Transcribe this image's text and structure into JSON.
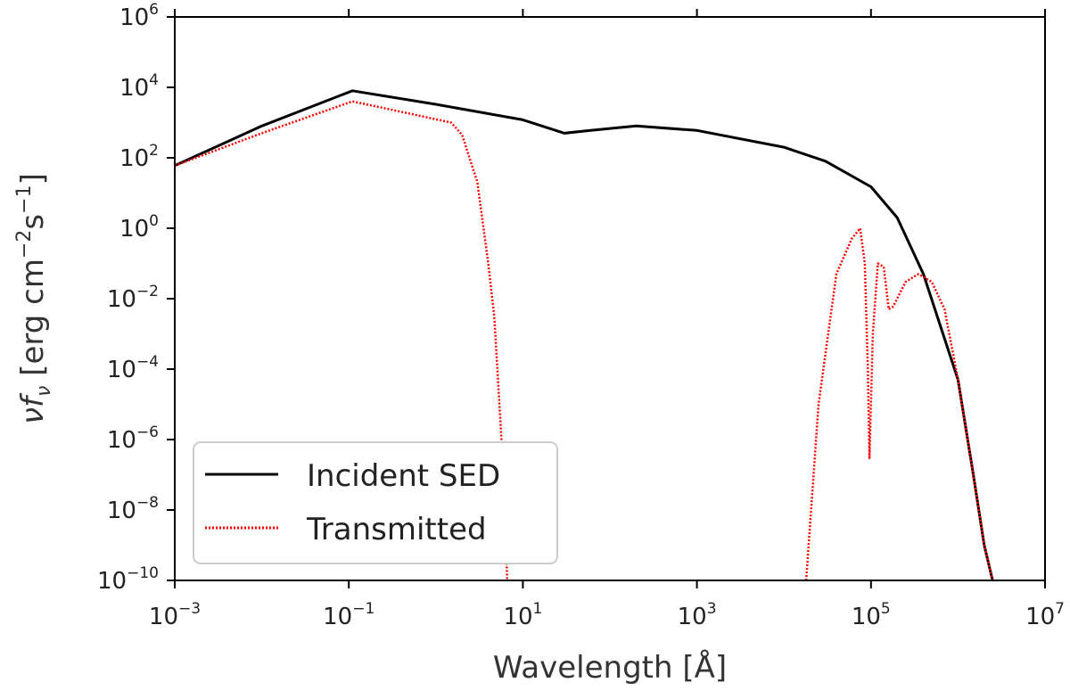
{
  "chart_data": {
    "type": "line",
    "xscale": "log",
    "yscale": "log",
    "xlabel": "Wavelength [Å]",
    "ylabel": "νfν [erg cm⁻²s⁻¹]",
    "ylabel_parts": {
      "nu": "ν",
      "f": "f",
      "sub": "ν",
      "rest": " [erg cm",
      "exp1": "−2",
      "s": "s",
      "exp2": "−1",
      "close": "]"
    },
    "xlim": [
      0.001,
      10000000
    ],
    "ylim": [
      1e-10,
      1000000
    ],
    "xticks": [
      {
        "base": "10",
        "exp": "−3",
        "value": 0.001
      },
      {
        "base": "10",
        "exp": "−1",
        "value": 0.1
      },
      {
        "base": "10",
        "exp": "1",
        "value": 10
      },
      {
        "base": "10",
        "exp": "3",
        "value": 1000
      },
      {
        "base": "10",
        "exp": "5",
        "value": 100000
      },
      {
        "base": "10",
        "exp": "7",
        "value": 10000000
      }
    ],
    "yticks": [
      {
        "base": "10",
        "exp": "−10",
        "value": 1e-10
      },
      {
        "base": "10",
        "exp": "−8",
        "value": 1e-08
      },
      {
        "base": "10",
        "exp": "−6",
        "value": 1e-06
      },
      {
        "base": "10",
        "exp": "−4",
        "value": 0.0001
      },
      {
        "base": "10",
        "exp": "−2",
        "value": 0.01
      },
      {
        "base": "10",
        "exp": "0",
        "value": 1
      },
      {
        "base": "10",
        "exp": "2",
        "value": 100
      },
      {
        "base": "10",
        "exp": "4",
        "value": 10000
      },
      {
        "base": "10",
        "exp": "6",
        "value": 1000000
      }
    ],
    "legend_position": "lower-left",
    "series": [
      {
        "name": "Incident SED",
        "color": "#000000",
        "style": "solid",
        "points": [
          [
            0.001,
            60
          ],
          [
            0.01,
            800
          ],
          [
            0.11,
            8000
          ],
          [
            1,
            3300
          ],
          [
            10,
            1200
          ],
          [
            30,
            500
          ],
          [
            60,
            600
          ],
          [
            200,
            800
          ],
          [
            1000,
            600
          ],
          [
            10000,
            200
          ],
          [
            30000,
            80
          ],
          [
            100000,
            15
          ],
          [
            200000,
            2
          ],
          [
            400000,
            0.05
          ],
          [
            1000000,
            5e-05
          ],
          [
            1500000,
            1e-07
          ],
          [
            2000000,
            1e-09
          ],
          [
            2500000,
            1e-10
          ]
        ]
      },
      {
        "name": "Transmitted",
        "color": "#ff0000",
        "style": "dotted",
        "points": [
          [
            0.001,
            60
          ],
          [
            0.01,
            500
          ],
          [
            0.11,
            4000
          ],
          [
            0.5,
            1800
          ],
          [
            1.5,
            1000
          ],
          [
            2,
            450
          ],
          [
            3,
            20
          ],
          [
            4,
            0.1
          ],
          [
            4.7,
            0.003
          ],
          [
            5.2,
            4e-05
          ],
          [
            6,
            1e-07
          ],
          [
            6.6,
            1e-10
          ],
          null,
          [
            18000,
            1e-10
          ],
          [
            25000,
            1e-05
          ],
          [
            40000,
            0.05
          ],
          [
            60000,
            0.5
          ],
          [
            75000,
            1
          ],
          [
            85000,
            0.1
          ],
          [
            92000,
            0.0001
          ],
          [
            96000,
            3e-07
          ],
          [
            105000,
            0.001
          ],
          [
            120000,
            0.1
          ],
          [
            140000,
            0.08
          ],
          [
            160000,
            0.005
          ],
          [
            180000,
            0.006
          ],
          [
            250000,
            0.03
          ],
          [
            350000,
            0.05
          ],
          [
            500000,
            0.03
          ],
          [
            700000,
            0.005
          ],
          [
            1000000,
            5e-05
          ],
          [
            1500000,
            1e-07
          ],
          [
            2000000,
            1e-09
          ],
          [
            2500000,
            1e-10
          ]
        ]
      }
    ]
  }
}
